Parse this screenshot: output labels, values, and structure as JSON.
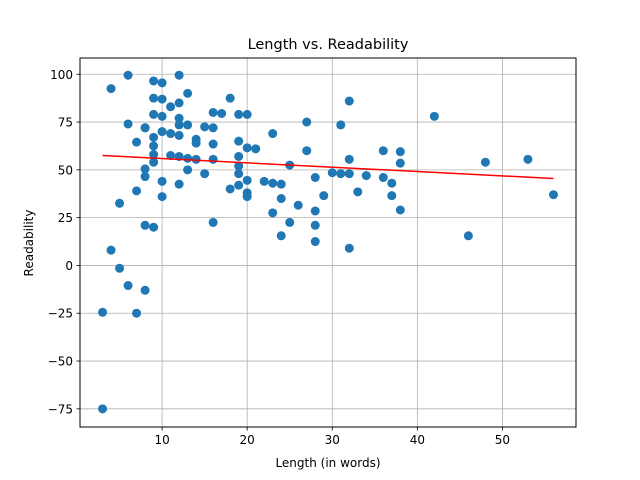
{
  "chart_data": {
    "type": "scatter",
    "title": "Length vs. Readability",
    "xlabel": "Length (in words)",
    "ylabel": "Readability",
    "xlim": [
      0.35,
      58.65
    ],
    "ylim": [
      -84.5,
      108.5
    ],
    "xticks": [
      10,
      20,
      30,
      40,
      50
    ],
    "yticks": [
      -75,
      -50,
      -25,
      0,
      25,
      50,
      75,
      100
    ],
    "grid": true,
    "point_color": "#1f77b4",
    "trend_color": "#ff0000",
    "trendline": {
      "x": [
        3,
        56
      ],
      "y": [
        57.5,
        45.5
      ]
    },
    "points": [
      [
        3,
        -75
      ],
      [
        3,
        -24.5
      ],
      [
        4,
        92.5
      ],
      [
        4,
        8
      ],
      [
        5,
        -1.5
      ],
      [
        5,
        32.5
      ],
      [
        6,
        99.5
      ],
      [
        6,
        74
      ],
      [
        6,
        -10.5
      ],
      [
        7,
        64.5
      ],
      [
        7,
        39
      ],
      [
        7,
        -25
      ],
      [
        8,
        72
      ],
      [
        8,
        72
      ],
      [
        8,
        50.5
      ],
      [
        8,
        46.5
      ],
      [
        8,
        21
      ],
      [
        8,
        -13
      ],
      [
        9,
        96.5
      ],
      [
        9,
        87.5
      ],
      [
        9,
        79
      ],
      [
        9,
        67
      ],
      [
        9,
        62.5
      ],
      [
        9,
        58
      ],
      [
        9,
        54
      ],
      [
        9,
        20
      ],
      [
        10,
        95.5
      ],
      [
        10,
        87
      ],
      [
        10,
        78
      ],
      [
        10,
        70
      ],
      [
        10,
        44
      ],
      [
        10,
        36
      ],
      [
        11,
        83
      ],
      [
        11,
        69
      ],
      [
        11,
        57.5
      ],
      [
        12,
        99.5
      ],
      [
        12,
        85
      ],
      [
        12,
        77
      ],
      [
        12,
        73.5
      ],
      [
        12,
        68
      ],
      [
        12,
        57
      ],
      [
        12,
        42.5
      ],
      [
        13,
        90
      ],
      [
        13,
        73.5
      ],
      [
        13,
        56
      ],
      [
        13,
        50
      ],
      [
        14,
        66
      ],
      [
        14,
        64
      ],
      [
        14,
        55.5
      ],
      [
        15,
        72.5
      ],
      [
        15,
        48
      ],
      [
        16,
        80
      ],
      [
        16,
        72
      ],
      [
        16,
        63.5
      ],
      [
        16,
        55.5
      ],
      [
        16,
        22.5
      ],
      [
        17,
        79.5
      ],
      [
        18,
        87.5
      ],
      [
        18,
        40
      ],
      [
        19,
        79
      ],
      [
        19,
        65
      ],
      [
        19,
        57
      ],
      [
        19,
        52
      ],
      [
        19,
        48
      ],
      [
        19,
        42
      ],
      [
        20,
        79
      ],
      [
        20,
        61.5
      ],
      [
        20,
        44.5
      ],
      [
        20,
        38
      ],
      [
        20,
        36
      ],
      [
        21,
        61
      ],
      [
        22,
        44
      ],
      [
        23,
        69
      ],
      [
        23,
        43
      ],
      [
        23,
        27.5
      ],
      [
        24,
        42.5
      ],
      [
        24,
        35
      ],
      [
        24,
        15.5
      ],
      [
        25,
        52.5
      ],
      [
        25,
        22.5
      ],
      [
        26,
        31.5
      ],
      [
        27,
        75
      ],
      [
        27,
        60
      ],
      [
        28,
        46
      ],
      [
        28,
        28.5
      ],
      [
        28,
        21
      ],
      [
        28,
        12.5
      ],
      [
        29,
        36.5
      ],
      [
        30,
        48.5
      ],
      [
        31,
        73.5
      ],
      [
        31,
        48
      ],
      [
        32,
        86
      ],
      [
        32,
        55.5
      ],
      [
        32,
        48
      ],
      [
        32,
        9
      ],
      [
        33,
        38.5
      ],
      [
        34,
        47
      ],
      [
        36,
        60
      ],
      [
        36,
        46
      ],
      [
        37,
        43
      ],
      [
        37,
        36.5
      ],
      [
        38,
        59.5
      ],
      [
        38,
        53.5
      ],
      [
        38,
        29
      ],
      [
        42,
        78
      ],
      [
        46,
        15.5
      ],
      [
        48,
        54
      ],
      [
        53,
        55.5
      ],
      [
        56,
        37
      ]
    ]
  }
}
